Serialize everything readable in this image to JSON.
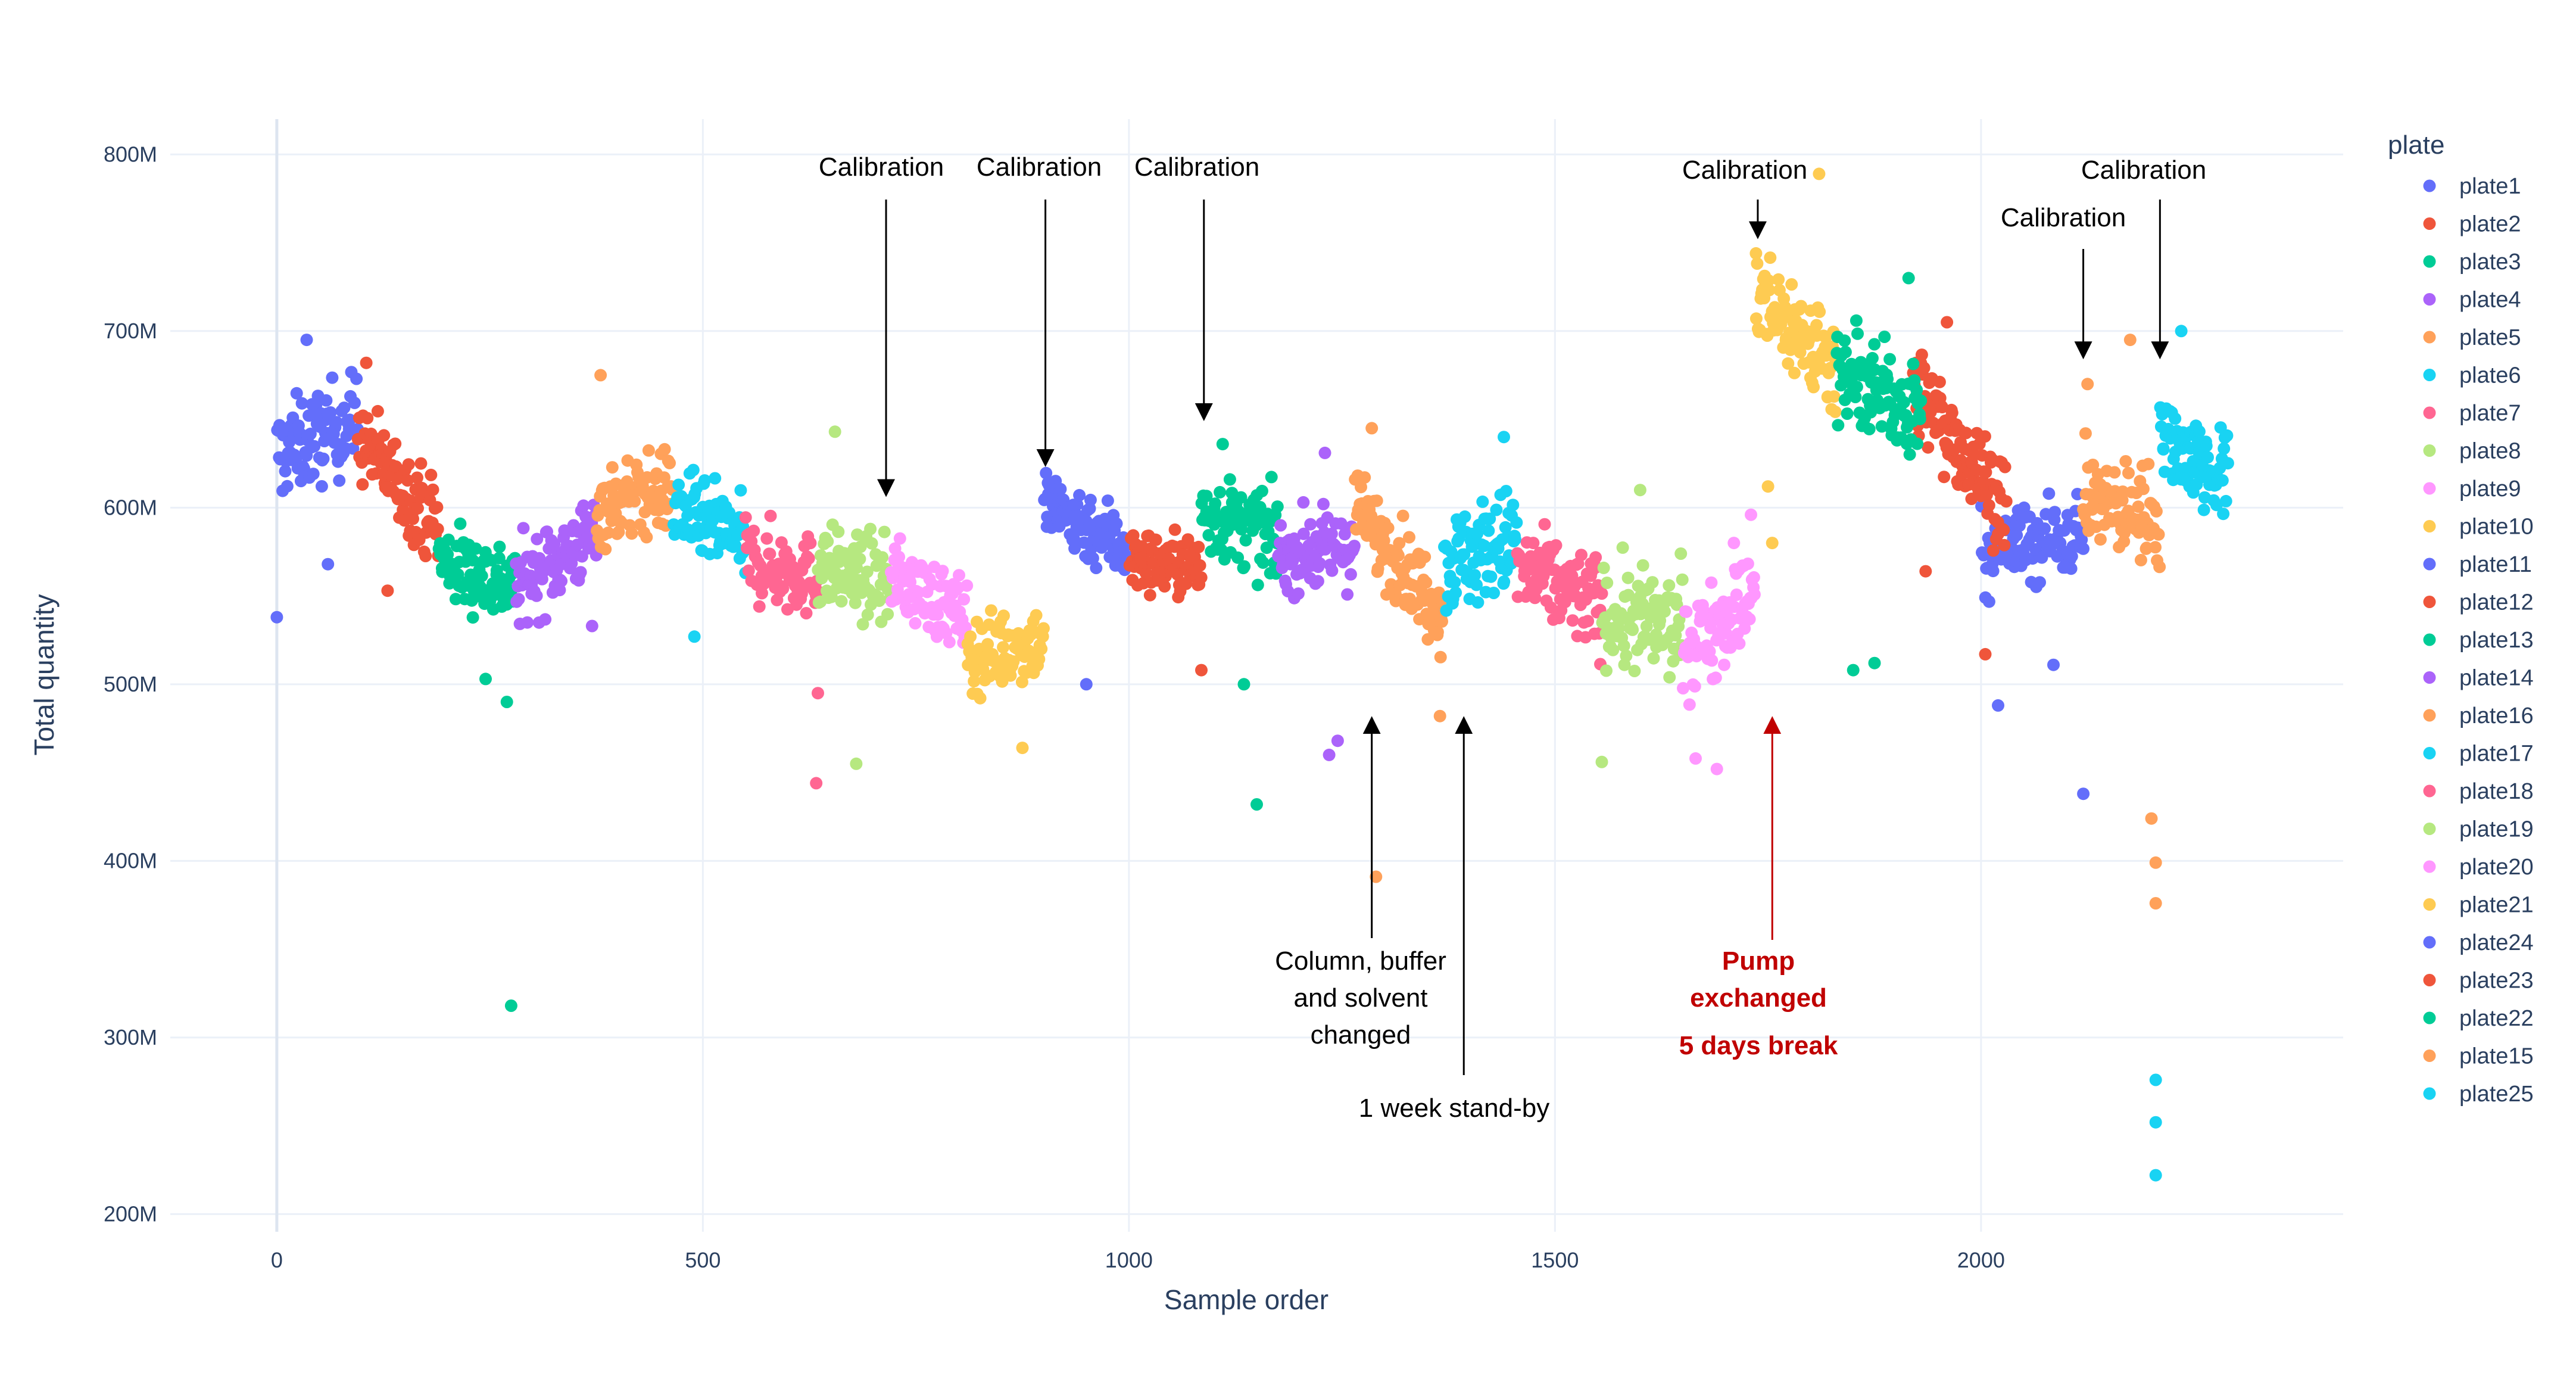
{
  "chart_data": {
    "type": "scatter",
    "xlabel": "Sample order",
    "ylabel": "Total quantity",
    "xlim": [
      -125,
      2425
    ],
    "ylim": [
      190000000,
      820000000
    ],
    "x_ticks": [
      0,
      500,
      1000,
      1500,
      2000
    ],
    "x_tick_labels": [
      "0",
      "500",
      "1000",
      "1500",
      "2000"
    ],
    "y_ticks": [
      200000000,
      300000000,
      400000000,
      500000000,
      600000000,
      700000000,
      800000000
    ],
    "y_tick_labels": [
      "200M",
      "300M",
      "400M",
      "500M",
      "600M",
      "700M",
      "800M"
    ],
    "grid": true,
    "legend_title": "plate",
    "legend_position": "right",
    "series": [
      {
        "name": "plate1",
        "color": "#636efa",
        "x_range": [
          0,
          95
        ],
        "center": 640000000,
        "spread": 25000000,
        "trend": 20000000,
        "n": 95,
        "outliers": [
          [
            0,
            538000000
          ],
          [
            35,
            695000000
          ],
          [
            60,
            568000000
          ]
        ]
      },
      {
        "name": "plate2",
        "color": "#ef553b",
        "x_range": [
          95,
          190
        ],
        "center": 615000000,
        "spread": 22000000,
        "trend": -50000000,
        "n": 95,
        "outliers": [
          [
            105,
            682000000
          ],
          [
            130,
            553000000
          ]
        ]
      },
      {
        "name": "plate3",
        "color": "#00cc96",
        "x_range": [
          190,
          280
        ],
        "center": 563000000,
        "spread": 22000000,
        "trend": -15000000,
        "n": 90,
        "outliers": [
          [
            275,
            318000000
          ],
          [
            270,
            490000000
          ],
          [
            245,
            503000000
          ]
        ]
      },
      {
        "name": "plate4",
        "color": "#ab63fa",
        "x_range": [
          280,
          375
        ],
        "center": 570000000,
        "spread": 22000000,
        "trend": 30000000,
        "n": 95,
        "outliers": [
          [
            370,
            533000000
          ]
        ]
      },
      {
        "name": "plate5",
        "color": "#ffa15a",
        "x_range": [
          375,
          465
        ],
        "center": 605000000,
        "spread": 22000000,
        "trend": 10000000,
        "n": 90,
        "outliers": [
          [
            380,
            675000000
          ]
        ]
      },
      {
        "name": "plate6",
        "color": "#19d3f3",
        "x_range": [
          465,
          550
        ],
        "center": 590000000,
        "spread": 22000000,
        "trend": -20000000,
        "n": 85,
        "outliers": [
          [
            490,
            527000000
          ]
        ]
      },
      {
        "name": "plate7",
        "color": "#ff6692",
        "x_range": [
          550,
          635
        ],
        "center": 565000000,
        "spread": 22000000,
        "trend": -10000000,
        "n": 85,
        "outliers": [
          [
            633,
            444000000
          ],
          [
            635,
            495000000
          ]
        ]
      },
      {
        "name": "plate8",
        "color": "#b6e880",
        "x_range": [
          635,
          720
        ],
        "center": 562000000,
        "spread": 22000000,
        "trend": -10000000,
        "n": 85,
        "outliers": [
          [
            680,
            455000000
          ],
          [
            655,
            643000000
          ]
        ]
      },
      {
        "name": "plate9",
        "color": "#ff97ff",
        "x_range": [
          720,
          810
        ],
        "center": 550000000,
        "spread": 20000000,
        "trend": -25000000,
        "n": 90,
        "outliers": []
      },
      {
        "name": "plate10",
        "color": "#fecb52",
        "x_range": [
          810,
          900
        ],
        "center": 520000000,
        "spread": 20000000,
        "trend": 10000000,
        "n": 90,
        "outliers": [
          [
            875,
            464000000
          ]
        ]
      },
      {
        "name": "plate11",
        "color": "#636efa",
        "x_range": [
          900,
          1000
        ],
        "center": 590000000,
        "spread": 20000000,
        "trend": -25000000,
        "n": 100,
        "outliers": [
          [
            950,
            500000000
          ],
          [
            905,
            614000000
          ]
        ]
      },
      {
        "name": "plate12",
        "color": "#ef553b",
        "x_range": [
          1000,
          1085
        ],
        "center": 568000000,
        "spread": 17000000,
        "trend": -5000000,
        "n": 85,
        "outliers": [
          [
            1085,
            508000000
          ]
        ]
      },
      {
        "name": "plate13",
        "color": "#00cc96",
        "x_range": [
          1085,
          1175
        ],
        "center": 590000000,
        "spread": 22000000,
        "trend": -15000000,
        "n": 90,
        "outliers": [
          [
            1150,
            432000000
          ],
          [
            1110,
            636000000
          ],
          [
            1135,
            500000000
          ]
        ]
      },
      {
        "name": "plate14",
        "color": "#ab63fa",
        "x_range": [
          1175,
          1265
        ],
        "center": 575000000,
        "spread": 20000000,
        "trend": 5000000,
        "n": 90,
        "outliers": [
          [
            1235,
            460000000
          ],
          [
            1245,
            468000000
          ],
          [
            1230,
            631000000
          ]
        ]
      },
      {
        "name": "plate16",
        "color": "#ffa15a",
        "x_range": [
          1265,
          1370
        ],
        "center": 570000000,
        "spread": 22000000,
        "trend": -60000000,
        "n": 105,
        "outliers": [
          [
            1290,
            391000000
          ],
          [
            1365,
            482000000
          ],
          [
            1285,
            645000000
          ]
        ]
      },
      {
        "name": "plate17",
        "color": "#19d3f3",
        "x_range": [
          1370,
          1455
        ],
        "center": 575000000,
        "spread": 28000000,
        "trend": 15000000,
        "n": 85,
        "outliers": [
          [
            1440,
            640000000
          ]
        ]
      },
      {
        "name": "plate18",
        "color": "#ff6692",
        "x_range": [
          1455,
          1555
        ],
        "center": 555000000,
        "spread": 25000000,
        "trend": -20000000,
        "n": 100,
        "outliers": []
      },
      {
        "name": "plate19",
        "color": "#b6e880",
        "x_range": [
          1555,
          1650
        ],
        "center": 535000000,
        "spread": 28000000,
        "trend": -5000000,
        "n": 95,
        "outliers": [
          [
            1555,
            456000000
          ],
          [
            1600,
            610000000
          ]
        ]
      },
      {
        "name": "plate20",
        "color": "#ff97ff",
        "x_range": [
          1650,
          1735
        ],
        "center": 535000000,
        "spread": 25000000,
        "trend": 35000000,
        "n": 85,
        "outliers": [
          [
            1665,
            458000000
          ],
          [
            1690,
            452000000
          ],
          [
            1710,
            580000000
          ],
          [
            1730,
            596000000
          ]
        ]
      },
      {
        "name": "plate21",
        "color": "#fecb52",
        "x_range": [
          1735,
          1830
        ],
        "center": 700000000,
        "spread": 28000000,
        "trend": -40000000,
        "n": 95,
        "outliers": [
          [
            1810,
            789000000
          ],
          [
            1755,
            580000000
          ],
          [
            1750,
            612000000
          ]
        ]
      },
      {
        "name": "plate24",
        "color": "#636efa",
        "x_range": [
          2000,
          2120
        ],
        "center": 580000000,
        "spread": 22000000,
        "trend": 10000000,
        "n": 110,
        "outliers": [
          [
            2020,
            488000000
          ],
          [
            2120,
            438000000
          ],
          [
            2085,
            511000000
          ]
        ]
      },
      {
        "name": "plate23",
        "color": "#ef553b",
        "x_range": [
          1920,
          2030
        ],
        "center": 635000000,
        "spread": 25000000,
        "trend": -70000000,
        "n": 110,
        "outliers": [
          [
            1935,
            564000000
          ],
          [
            2005,
            517000000
          ],
          [
            1960,
            705000000
          ]
        ]
      },
      {
        "name": "plate22",
        "color": "#00cc96",
        "x_range": [
          1830,
          1930
        ],
        "center": 665000000,
        "spread": 25000000,
        "trend": -20000000,
        "n": 100,
        "outliers": [
          [
            1850,
            508000000
          ],
          [
            1875,
            512000000
          ],
          [
            1915,
            730000000
          ]
        ]
      },
      {
        "name": "plate15",
        "color": "#ffa15a",
        "x_range": [
          2120,
          2210
        ],
        "center": 600000000,
        "spread": 25000000,
        "trend": -10000000,
        "n": 90,
        "outliers": [
          [
            2200,
            424000000
          ],
          [
            2205,
            399000000
          ],
          [
            2205,
            376000000
          ],
          [
            2125,
            670000000
          ],
          [
            2175,
            695000000
          ]
        ]
      },
      {
        "name": "plate25",
        "color": "#19d3f3",
        "x_range": [
          2210,
          2290
        ],
        "center": 628000000,
        "spread": 25000000,
        "trend": -30000000,
        "n": 80,
        "outliers": [
          [
            2205,
            276000000
          ],
          [
            2205,
            252000000
          ],
          [
            2205,
            222000000
          ],
          [
            2235,
            700000000
          ]
        ]
      }
    ],
    "annotations": [
      {
        "text": "Calibration",
        "tip_x": 715,
        "tip_y": 605000000,
        "color": "black"
      },
      {
        "text": "Calibration",
        "tip_x": 902,
        "tip_y": 622000000,
        "color": "black"
      },
      {
        "text": "Calibration",
        "tip_x": 1088,
        "tip_y": 648000000,
        "color": "black"
      },
      {
        "text": "Calibration",
        "tip_x": 1738,
        "tip_y": 751000000,
        "color": "black"
      },
      {
        "text": "Calibration",
        "tip_x": 2120,
        "tip_y": 683000000,
        "color": "black"
      },
      {
        "text": "Calibration",
        "tip_x": 2210,
        "tip_y": 683000000,
        "color": "black"
      },
      {
        "text": "Column, buffer and solvent changed",
        "lines": [
          "Column, buffer",
          "and solvent",
          "changed"
        ],
        "tip_x": 1285,
        "tip_y": 483000000,
        "color": "black"
      },
      {
        "text": "1 week stand-by",
        "tip_x": 1393,
        "tip_y": 483000000,
        "color": "black"
      },
      {
        "text": "Pump exchanged 5 days break",
        "lines": [
          "Pump",
          "exchanged",
          "5 days break"
        ],
        "tip_x": 1755,
        "tip_y": 483000000,
        "color": "#c00000"
      }
    ]
  }
}
